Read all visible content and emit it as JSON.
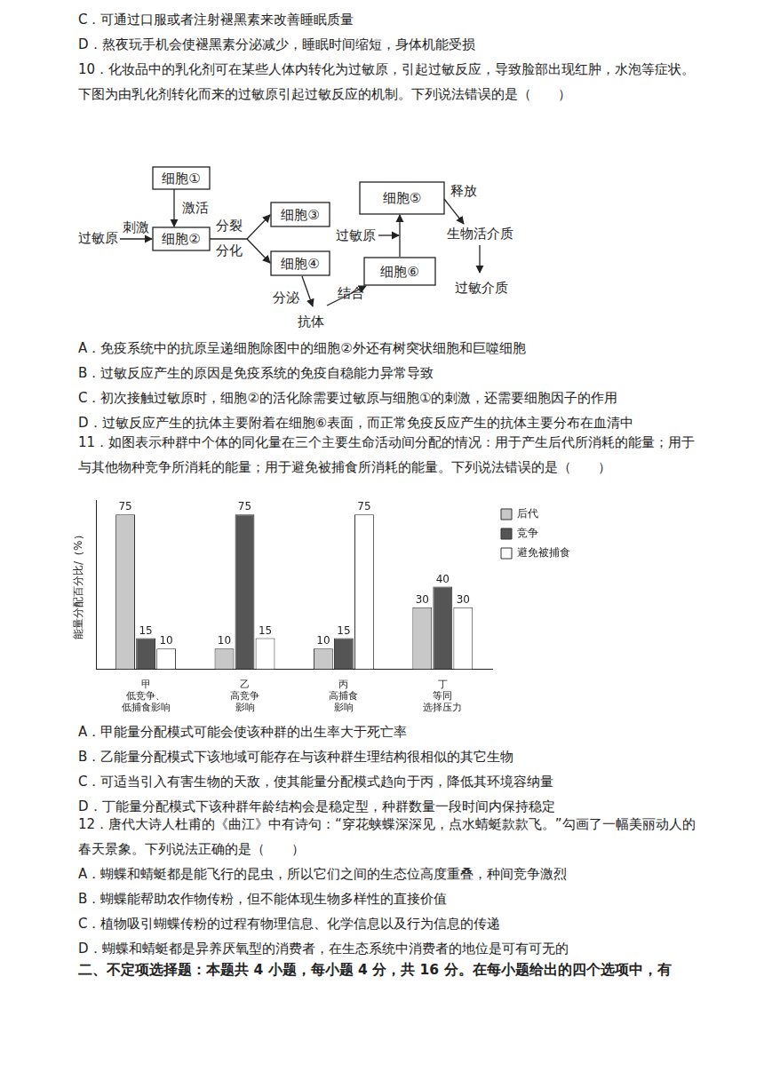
{
  "top_lines": [
    "C．可通过口服或者注射褪黑素来改善睡眠质量",
    "D．熬夜玩手机会使褪黑素分泌减少，睡眠时间缩短，身体机能受损",
    "10．化妆品中的乳化剂可在某些人体内转化为过敏原，引起过敏反应，导致脸部出现红肿，水泡等症状。",
    "下图为由乳化剂转化而来的过敏原引起过敏反应的机制。下列说法错误的是（　　）"
  ],
  "diagram": {
    "cells": [
      "细胞①",
      "细胞②",
      "细胞③",
      "细胞④",
      "细胞⑤",
      "细胞⑥"
    ],
    "labels": [
      "过敏原",
      "刺激",
      "激活",
      "分裂",
      "分化",
      "分泌",
      "抗体",
      "结合",
      "过敏原",
      "释放",
      "生物活介质",
      "过敏介质"
    ]
  },
  "q10_options": [
    "A．免疫系统中的抗原呈递细胞除图中的细胞②外还有树突状细胞和巨噬细胞",
    "B．过敏反应产生的原因是免疫系统的免疫自稳能力异常导致",
    "C．初次接触过敏原时，细胞②的活化除需要过敏原与细胞①的刺激，还需要细胞因子的作用",
    "D．过敏反应产生的抗体主要附着在细胞⑥表面，而正常免疫反应产生的抗体主要分布在血清中"
  ],
  "q11_lines": [
    "11．如图表示种群中个体的同化量在三个主要生命活动间分配的情况：用于产生后代所消耗的能量；用于",
    "与其他物种竞争所消耗的能量；用于避免被捕食所消耗的能量。下列说法错误的是（　　）"
  ],
  "chart_data": {
    "type": "bar",
    "y_label": "能量分配百分比/（%）",
    "categories": [
      [
        "甲",
        "低竞争、",
        "低捕食影响"
      ],
      [
        "乙",
        "高竞争",
        "影响"
      ],
      [
        "丙",
        "高捕食",
        "影响"
      ],
      [
        "丁",
        "等同",
        "选择压力"
      ]
    ],
    "series": [
      {
        "name": "后代",
        "color": "#c8c8c8",
        "values": [
          75,
          10,
          10,
          30
        ]
      },
      {
        "name": "竞争",
        "color": "#555555",
        "values": [
          15,
          75,
          15,
          40
        ]
      },
      {
        "name": "避免被捕食",
        "color": "#ffffff",
        "values": [
          10,
          15,
          75,
          30
        ]
      }
    ],
    "ylim": [
      0,
      82
    ],
    "grid": false,
    "legend": "right",
    "data_labels": true,
    "tick_labels": "x"
  },
  "q11_options": [
    "A．甲能量分配模式可能会使该种群的出生率大于死亡率",
    "B．乙能量分配模式下该地域可能存在与该种群生理结构很相似的其它生物",
    "C．可适当引入有害生物的天敌，使其能量分配模式趋向于丙，降低其环境容纳量",
    "D．丁能量分配模式下该种群年龄结构会是稳定型，种群数量一段时间内保持稳定"
  ],
  "q12_lines": [
    "12．唐代大诗人杜甫的《曲江》中有诗句：“穿花蛱蝶深深见，点水蜻蜓款款飞。”勾画了一幅美丽动人的",
    "春天景象。下列说法正确的是（　　）"
  ],
  "q12_options": [
    "A．蝴蝶和蜻蜓都是能飞行的昆虫，所以它们之间的生态位高度重叠，种间竞争激烈",
    "B．蝴蝶能帮助农作物传粉，但不能体现生物多样性的直接价值",
    "C．植物吸引蝴蝶传粉的过程有物理信息、化学信息以及行为信息的传递",
    "D．蝴蝶和蜻蜓都是异养厌氧型的消费者，在生态系统中消费者的地位是可有可无的"
  ],
  "section_heading": "二、不定项选择题：本题共 4 小题，每小题 4 分，共 16 分。在每小题给出的四个选项中，有"
}
